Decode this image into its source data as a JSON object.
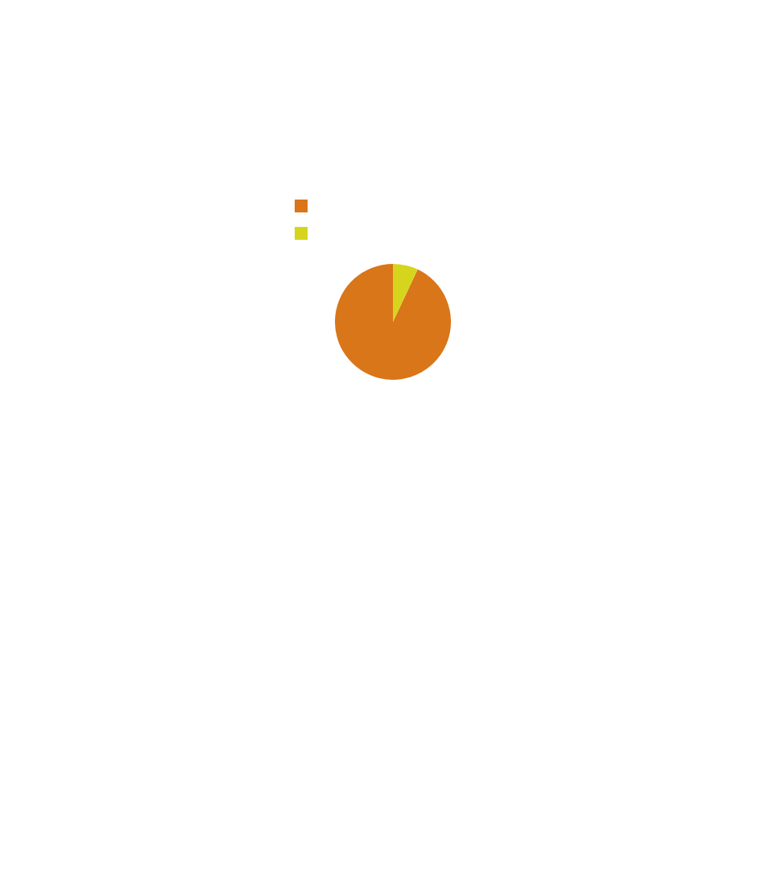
{
  "chart_data": {
    "type": "pie",
    "categories": [
      null,
      null
    ],
    "values": [
      93,
      7
    ],
    "colors": [
      "#d97619",
      "#d5d51e"
    ]
  }
}
